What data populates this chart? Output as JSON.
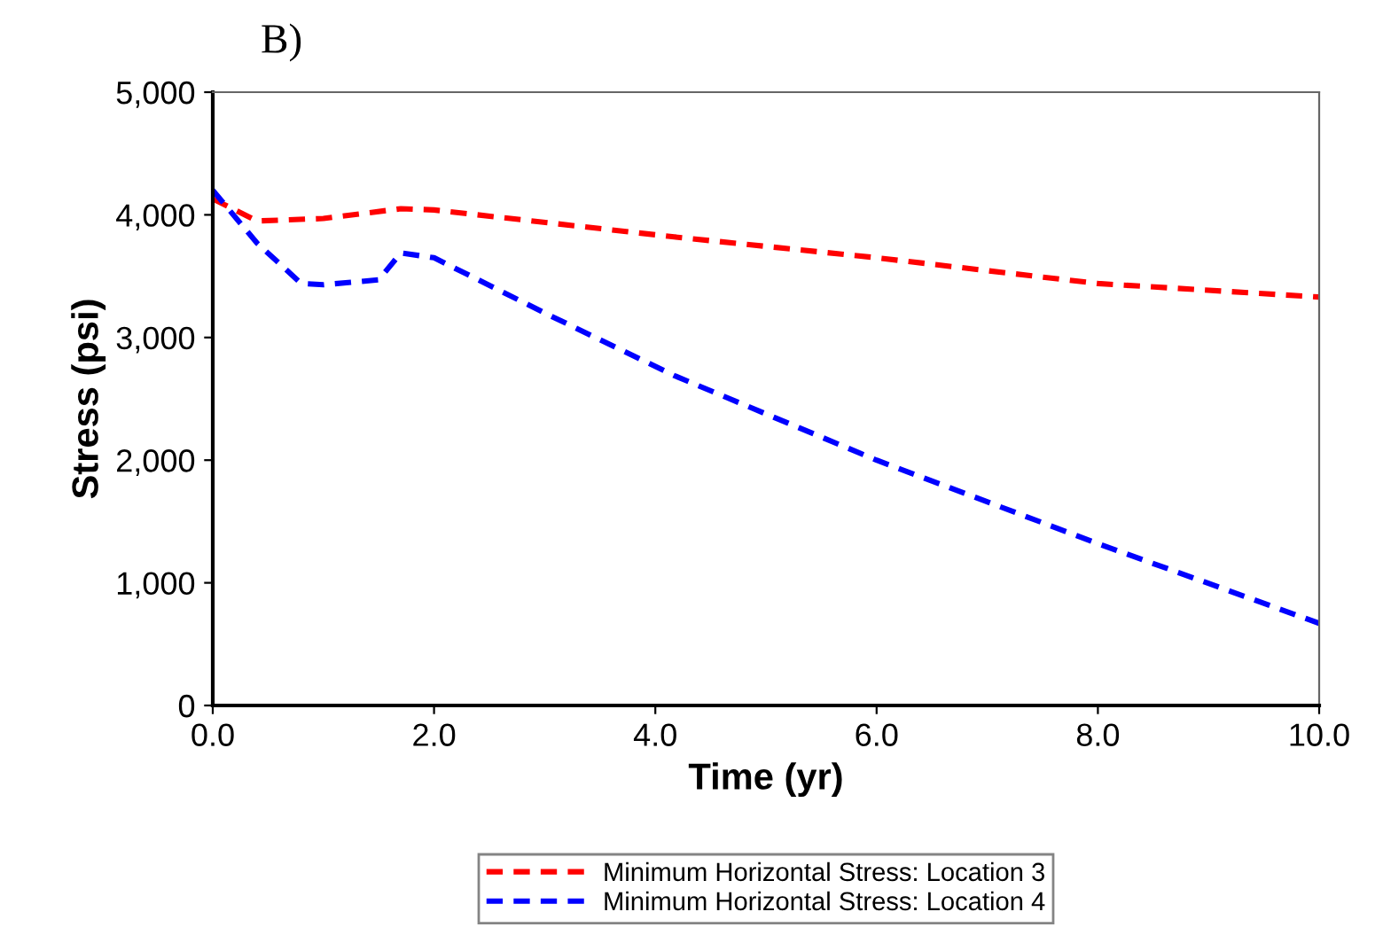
{
  "chart_data": {
    "type": "line",
    "title": "B)",
    "xlabel": "Time (yr)",
    "ylabel": "Stress (psi)",
    "xlim": [
      0,
      10
    ],
    "ylim": [
      0,
      5000
    ],
    "xticks": [
      {
        "value": 0,
        "label": "0.0"
      },
      {
        "value": 2,
        "label": "2.0"
      },
      {
        "value": 4,
        "label": "4.0"
      },
      {
        "value": 6,
        "label": "6.0"
      },
      {
        "value": 8,
        "label": "8.0"
      },
      {
        "value": 10,
        "label": "10.0"
      }
    ],
    "yticks": [
      {
        "value": 0,
        "label": "0"
      },
      {
        "value": 1000,
        "label": "1,000"
      },
      {
        "value": 2000,
        "label": "2,000"
      },
      {
        "value": 3000,
        "label": "3,000"
      },
      {
        "value": 4000,
        "label": "4,000"
      },
      {
        "value": 5000,
        "label": "5,000"
      }
    ],
    "line_style": "dashed",
    "legend": "bottom",
    "grid": false,
    "series": [
      {
        "name": "Minimum Horizontal Stress: Location 3",
        "color": "#ff0000",
        "x": [
          0,
          0.4,
          1.0,
          1.7,
          2.0,
          4.17,
          6,
          8,
          10
        ],
        "values": [
          4130,
          3950,
          3970,
          4050,
          4040,
          3820,
          3650,
          3440,
          3330
        ]
      },
      {
        "name": "Minimum Horizontal Stress: Location 4",
        "color": "#0000ff",
        "x": [
          0,
          0.4,
          0.8,
          1.0,
          1.5,
          1.7,
          2.0,
          3.0,
          4.17,
          6,
          8,
          10
        ],
        "values": [
          4200,
          3770,
          3440,
          3430,
          3470,
          3690,
          3650,
          3200,
          2690,
          2000,
          1320,
          670
        ]
      }
    ]
  }
}
